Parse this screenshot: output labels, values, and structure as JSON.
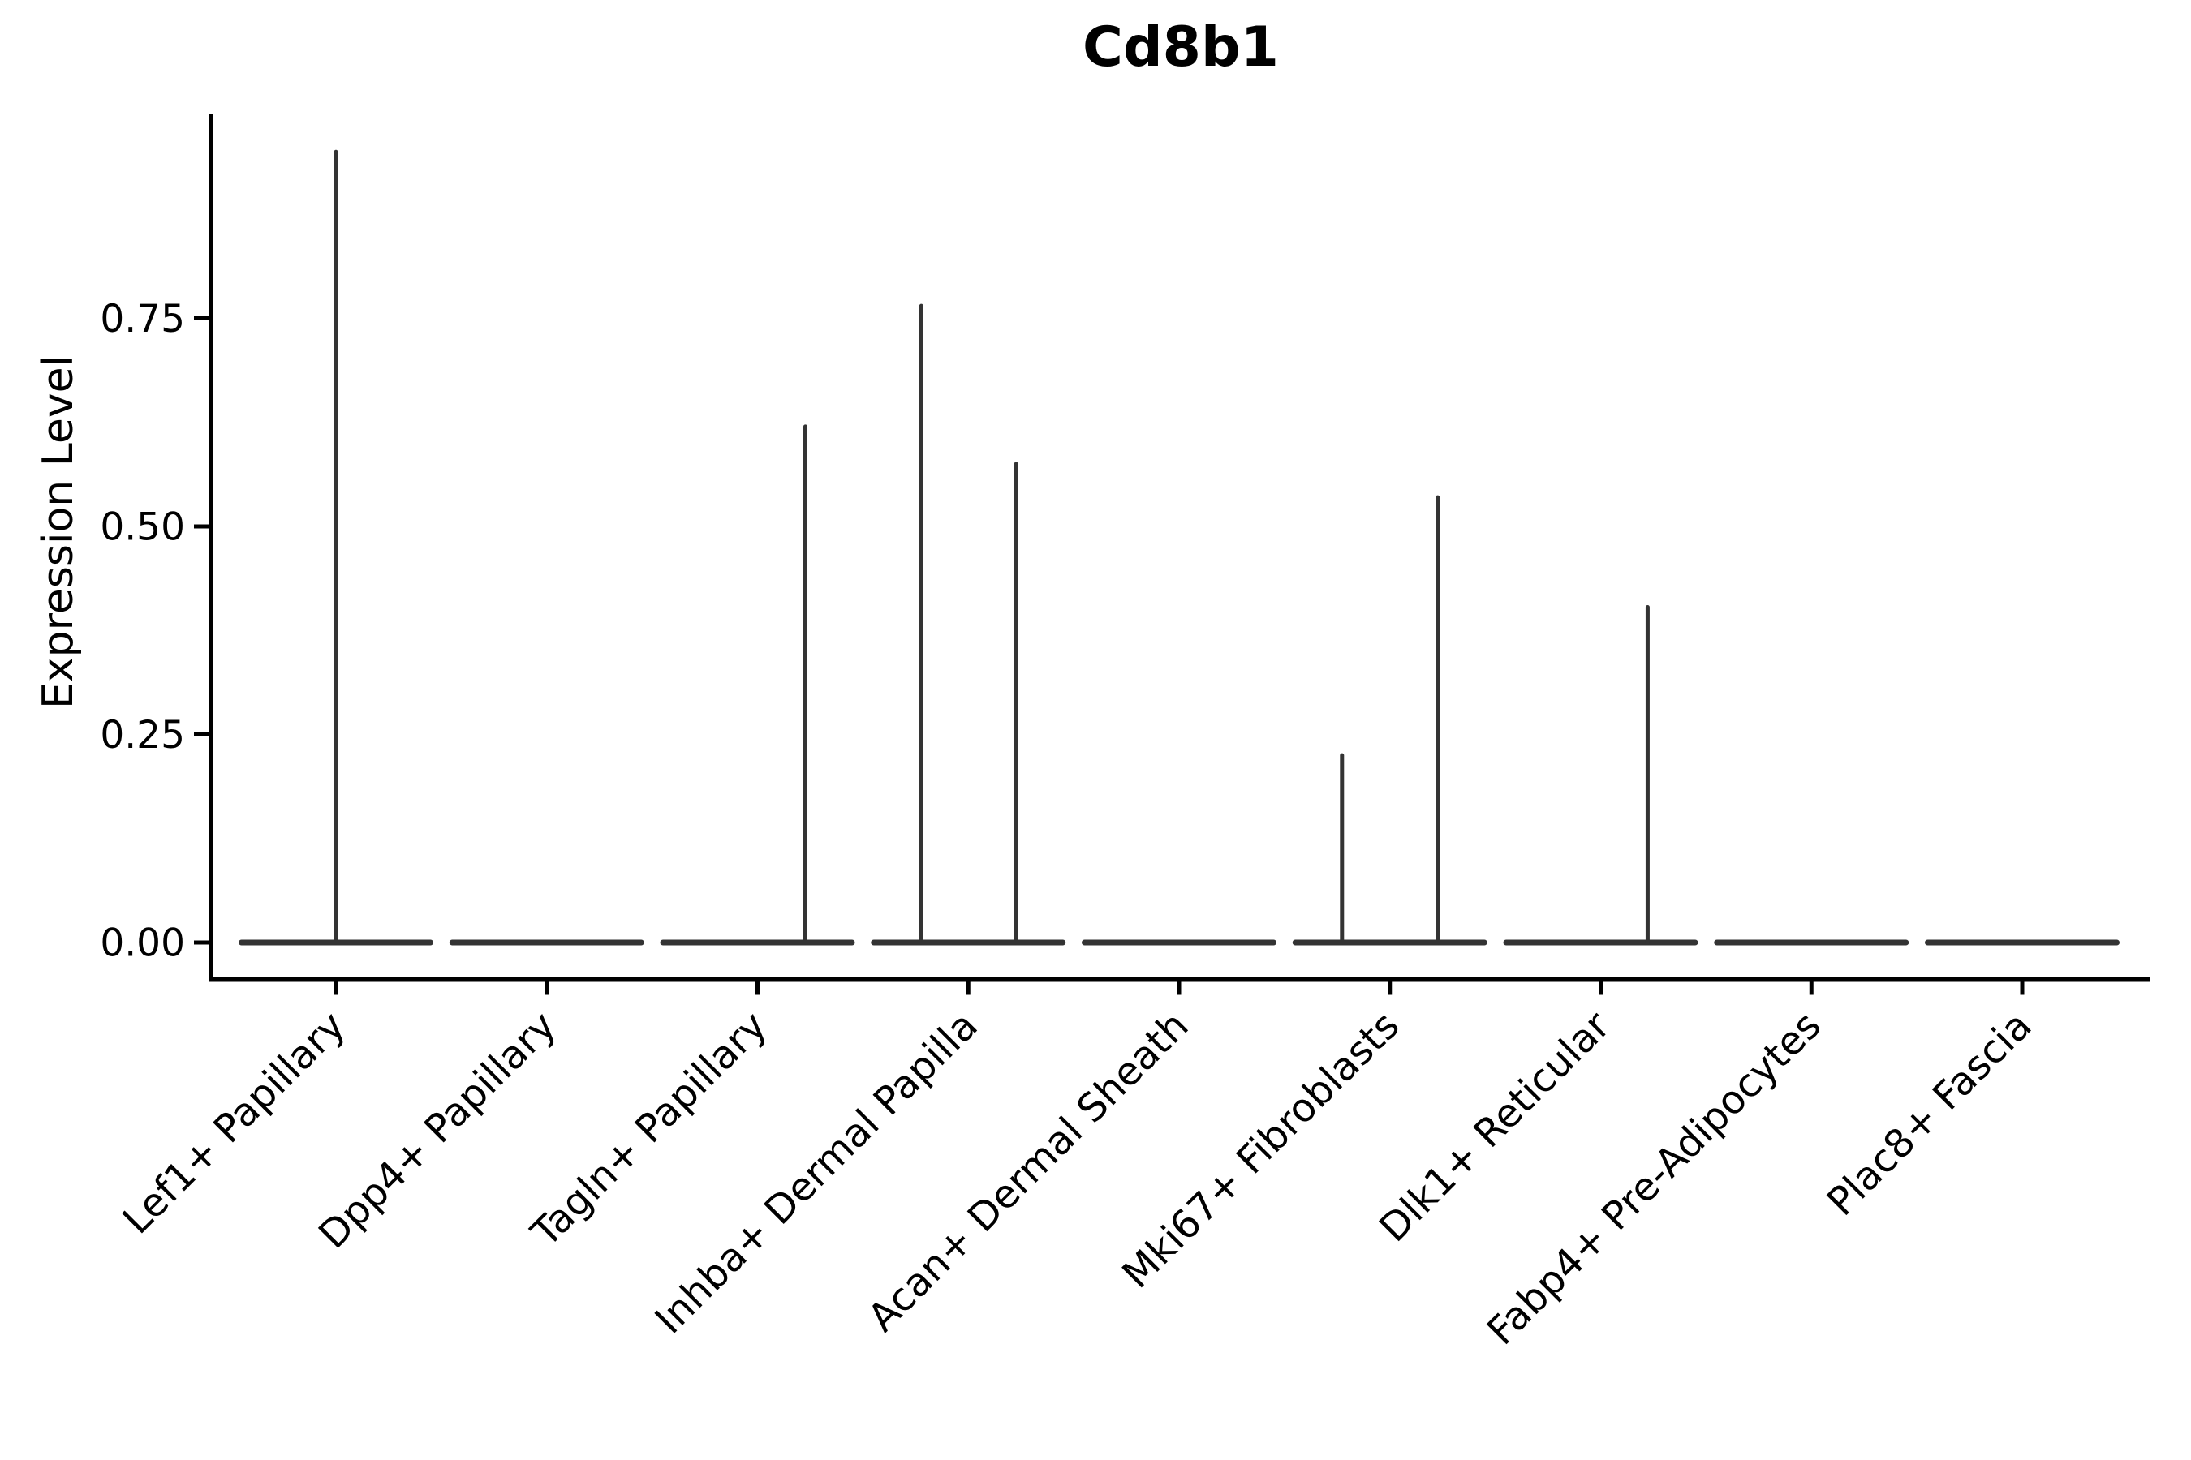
{
  "title": "Cd8b1",
  "chart_data": {
    "type": "violin",
    "title": "Cd8b1",
    "xlabel": "",
    "ylabel": "Expression Level",
    "categories": [
      "Lef1+ Papillary",
      "Dpp4+ Papillary",
      "Tagln+ Papillary",
      "Inhba+ Dermal Papilla",
      "Acan+ Dermal Sheath",
      "Mki67+ Fibroblasts",
      "Dlk1+ Reticular",
      "Fabp4+ Pre-Adipocytes",
      "Plac8+ Fascia"
    ],
    "y_ticks": [
      {
        "value": 0.0,
        "label": "0.00"
      },
      {
        "value": 0.25,
        "label": "0.25"
      },
      {
        "value": 0.5,
        "label": "0.50"
      },
      {
        "value": 0.75,
        "label": "0.75"
      }
    ],
    "ylim": [
      -0.047,
      0.996
    ],
    "grid": false,
    "legend": "none",
    "violin_color": "#333333",
    "axis_color": "#000000",
    "violins": [
      {
        "category": "Lef1+ Papillary",
        "max_value": 0.95,
        "baseline_value": 0.0,
        "spikes": [
          {
            "offset_frac": 0.0,
            "value": 0.95
          }
        ]
      },
      {
        "category": "Dpp4+ Papillary",
        "max_value": 0.0,
        "baseline_value": 0.0,
        "spikes": []
      },
      {
        "category": "Tagln+ Papillary",
        "max_value": 0.62,
        "baseline_value": 0.0,
        "spikes": [
          {
            "offset_frac": 0.227,
            "value": 0.62
          }
        ]
      },
      {
        "category": "Inhba+ Dermal Papilla",
        "max_value": 0.765,
        "baseline_value": 0.0,
        "spikes": [
          {
            "offset_frac": -0.223,
            "value": 0.765
          },
          {
            "offset_frac": 0.227,
            "value": 0.575
          }
        ]
      },
      {
        "category": "Acan+ Dermal Sheath",
        "max_value": 0.0,
        "baseline_value": 0.0,
        "spikes": []
      },
      {
        "category": "Mki67+ Fibroblasts",
        "max_value": 0.535,
        "baseline_value": 0.0,
        "spikes": [
          {
            "offset_frac": -0.227,
            "value": 0.225
          },
          {
            "offset_frac": 0.227,
            "value": 0.535
          }
        ]
      },
      {
        "category": "Dlk1+ Reticular",
        "max_value": 0.403,
        "baseline_value": 0.0,
        "spikes": [
          {
            "offset_frac": 0.223,
            "value": 0.403
          }
        ]
      },
      {
        "category": "Fabp4+ Pre-Adipocytes",
        "max_value": 0.0,
        "baseline_value": 0.0,
        "spikes": []
      },
      {
        "category": "Plac8+ Fascia",
        "max_value": 0.0,
        "baseline_value": 0.0,
        "spikes": []
      }
    ]
  }
}
